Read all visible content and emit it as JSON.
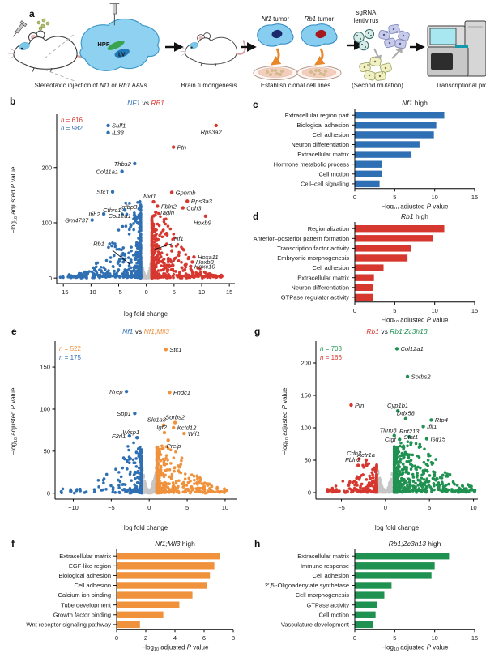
{
  "colors": {
    "blue": "#2f6fb3",
    "red": "#d6372e",
    "orange": "#f0913c",
    "green": "#1f9150",
    "gray": "#c6c6c6",
    "black": "#1a1a1a",
    "cell_body": "#87cdef",
    "nf1_nucleus": "#1b2a6b",
    "rb1_nucleus": "#a6191f",
    "brain": "#8ed1f0",
    "screen": "#a8e7f0"
  },
  "panel_letters": {
    "a": "a",
    "b": "b",
    "c": "c",
    "d": "d",
    "e": "e",
    "f": "f",
    "g": "g",
    "h": "h"
  },
  "panel_a": {
    "captions": [
      [
        {
          "t": "Stereotaxic injection of "
        },
        {
          "t": "Nf1",
          "i": 1
        },
        {
          "t": " or "
        },
        {
          "t": "Rb1",
          "i": 1
        },
        {
          "t": " AAVs"
        }
      ],
      [
        {
          "t": "Brain tumorigenesis"
        }
      ],
      [
        {
          "t": "Establish clonal cell lines"
        }
      ],
      [
        {
          "t": "(Second mutation)"
        }
      ],
      [
        {
          "t": "Transcriptional profiling"
        }
      ]
    ],
    "labels": {
      "nf1_tumor": [
        {
          "t": "Nf1",
          "i": 1
        },
        {
          "t": " tumor"
        }
      ],
      "rb1_tumor": [
        {
          "t": "Rb1",
          "i": 1
        },
        {
          "t": " tumor"
        }
      ],
      "sgrna_line1": "sgRNA",
      "sgrna_line2": "lentivirus",
      "hpf": "HPF",
      "lv": "LV"
    }
  },
  "chart_data": [
    {
      "id": "b",
      "type": "scatter",
      "subtype": "volcano",
      "title": [
        {
          "t": "NF1",
          "i": 1,
          "c": "blue"
        },
        {
          "t": " vs "
        },
        {
          "t": "RB1",
          "i": 1,
          "c": "red"
        }
      ],
      "legend": [
        [
          {
            "t": "n",
            "i": 1,
            "c": "red"
          },
          {
            "t": " = 616",
            "c": "red"
          }
        ],
        [
          {
            "t": "n",
            "i": 1,
            "c": "blue"
          },
          {
            "t": " = 982",
            "c": "blue"
          }
        ]
      ],
      "xlabel": "log fold change",
      "ylabel": "−log_{10} adjusted *P* value",
      "xlim": [
        -16.2,
        16
      ],
      "ylim": [
        -10,
        292
      ],
      "xticks": [
        -15,
        -10,
        -5,
        0,
        5,
        10,
        15
      ],
      "yticks": [
        0,
        100,
        200
      ],
      "genes": [
        {
          "n": "Sulf1",
          "x": -6.9,
          "y": 276,
          "c": "blue",
          "p": "r"
        },
        {
          "n": "IL33",
          "x": -6.9,
          "y": 263,
          "c": "blue",
          "p": "r"
        },
        {
          "n": "Rps3a2",
          "x": 12.6,
          "y": 276,
          "c": "red",
          "p": "bl"
        },
        {
          "n": "Ptn",
          "x": 4.9,
          "y": 237,
          "c": "red",
          "p": "r"
        },
        {
          "n": "Thbs2",
          "x": -2.1,
          "y": 207,
          "c": "blue",
          "p": "l"
        },
        {
          "n": "Col11a1",
          "x": -4.4,
          "y": 193,
          "c": "blue",
          "p": "l"
        },
        {
          "n": "Stc1",
          "x": -6.1,
          "y": 156,
          "c": "blue",
          "p": "l"
        },
        {
          "n": "Gpnmb",
          "x": 4.6,
          "y": 155,
          "c": "red",
          "p": "r"
        },
        {
          "n": "Nid1",
          "x": 1.3,
          "y": 138,
          "c": "red",
          "p": "al"
        },
        {
          "n": "Fbln2",
          "x": 2.0,
          "y": 130,
          "c": "red",
          "p": "r"
        },
        {
          "n": "Rps3a3",
          "x": 7.4,
          "y": 139,
          "c": "red",
          "p": "r"
        },
        {
          "n": "Cdh3",
          "x": 6.6,
          "y": 127,
          "c": "red",
          "p": "r"
        },
        {
          "n": "Igfbp3",
          "x": -1.0,
          "y": 129,
          "c": "blue",
          "p": "l"
        },
        {
          "n": "Cthrc1",
          "x": -3.9,
          "y": 123,
          "c": "blue",
          "p": "l"
        },
        {
          "n": "Itih2",
          "x": -7.7,
          "y": 116,
          "c": "blue",
          "p": "l"
        },
        {
          "n": "Col12a1",
          "x": -2.1,
          "y": 113,
          "c": "blue",
          "p": "l"
        },
        {
          "n": "Tagln",
          "x": 1.7,
          "y": 119,
          "c": "red",
          "p": "r"
        },
        {
          "n": "Gm4737",
          "x": -9.8,
          "y": 105,
          "c": "blue",
          "p": "l"
        },
        {
          "n": "Hoxb9",
          "x": 10.7,
          "y": 112,
          "c": "red",
          "p": "bl"
        },
        {
          "n": "Hoxa11",
          "x": 8.6,
          "y": 38,
          "c": "red",
          "p": "r"
        },
        {
          "n": "Hoxb8",
          "x": 8.3,
          "y": 29,
          "c": "red",
          "p": "r"
        },
        {
          "n": "Hoxc10",
          "x": 8.0,
          "y": 21,
          "c": "red",
          "p": "r"
        }
      ],
      "annotations": [
        {
          "n": "Rb1",
          "tx": -9.6,
          "ty": 58,
          "x1": -6.2,
          "y1": 51,
          "x2": -2.9,
          "y2": 24
        },
        {
          "n": "Nf1",
          "tx": 5.0,
          "ty": 68,
          "x1": 4.6,
          "y1": 62,
          "x2": 1.5,
          "y2": 52
        }
      ]
    },
    {
      "id": "c",
      "type": "bar",
      "color": "blue",
      "title": [
        {
          "t": "Nf1",
          "i": 1
        },
        {
          "t": " high"
        }
      ],
      "categories": [
        "Extracellular region part",
        "Biological adhesion",
        "Cell adhesion",
        "Neuron differentiation",
        "Extracellular matrix",
        "Hormone metabolic process",
        "Cell motion",
        "Cell–cell signaling"
      ],
      "values": [
        11.2,
        10.2,
        9.9,
        8.1,
        7.1,
        3.4,
        3.4,
        3.1
      ],
      "xlim": [
        0,
        15
      ],
      "xticks": [
        0,
        5,
        10,
        15
      ],
      "xlabel": "−log_{10} adjusted *P* value"
    },
    {
      "id": "d",
      "type": "bar",
      "color": "red",
      "title": [
        {
          "t": "Rb1",
          "i": 1
        },
        {
          "t": " high"
        }
      ],
      "categories": [
        "Regionalization",
        "Anterior–posterior pattern formation",
        "Transcription factor activity",
        "Embryonic morphogenesis",
        "Cell adhesion",
        "Extracellular matrix",
        "Neuron differentiation",
        "GTPase regulator activity"
      ],
      "values": [
        11.2,
        9.8,
        7.0,
        6.6,
        3.6,
        2.4,
        2.3,
        2.3
      ],
      "xlim": [
        0,
        15
      ],
      "xticks": [
        0,
        5,
        10,
        15
      ],
      "xlabel": "−log_{10} adjusted *P* value"
    },
    {
      "id": "e",
      "type": "scatter",
      "subtype": "volcano",
      "title": [
        {
          "t": "Nf1",
          "i": 1,
          "c": "blue"
        },
        {
          "t": " vs "
        },
        {
          "t": "Nf1;Mll3",
          "i": 1,
          "c": "orange"
        }
      ],
      "legend": [
        [
          {
            "t": "n",
            "i": 1,
            "c": "orange"
          },
          {
            "t": " = 522",
            "c": "orange"
          }
        ],
        [
          {
            "t": "n",
            "i": 1,
            "c": "blue"
          },
          {
            "t": " = 175",
            "c": "blue"
          }
        ]
      ],
      "xlabel": "log fold change",
      "ylabel": "−log_{10} adjusted *P* value",
      "xlim": [
        -12.4,
        11.5
      ],
      "ylim": [
        -7,
        178
      ],
      "xticks": [
        -10,
        -5,
        0,
        5,
        10
      ],
      "yticks": [
        0,
        50,
        100,
        150
      ],
      "genes": [
        {
          "n": "Stc1",
          "x": 2.2,
          "y": 171,
          "c": "orange",
          "p": "r"
        },
        {
          "n": "Nrep",
          "x": -3.0,
          "y": 121,
          "c": "blue",
          "p": "l"
        },
        {
          "n": "Fndc1",
          "x": 2.7,
          "y": 120,
          "c": "orange",
          "p": "r"
        },
        {
          "n": "Spp1",
          "x": -1.9,
          "y": 95,
          "c": "blue",
          "p": "l"
        },
        {
          "n": "Slc1a3",
          "x": 1.9,
          "y": 81,
          "c": "orange",
          "p": "al"
        },
        {
          "n": "Sorbs2",
          "x": 3.4,
          "y": 84,
          "c": "orange",
          "p": "a"
        },
        {
          "n": "Kctd12",
          "x": 3.2,
          "y": 78,
          "c": "orange",
          "p": "r"
        },
        {
          "n": "Igf2",
          "x": 2.0,
          "y": 72,
          "c": "orange",
          "p": "al"
        },
        {
          "n": "Wif1",
          "x": 4.6,
          "y": 71,
          "c": "orange",
          "p": "r"
        },
        {
          "n": "F2rl1",
          "x": -2.6,
          "y": 68,
          "c": "blue",
          "p": "l"
        },
        {
          "n": "Wisp1",
          "x": -1.6,
          "y": 66,
          "c": "blue",
          "p": "al"
        },
        {
          "n": "Prelp",
          "x": 2.5,
          "y": 63,
          "c": "orange",
          "p": "br"
        }
      ],
      "annotations": []
    },
    {
      "id": "f",
      "type": "bar",
      "color": "orange",
      "title": [
        {
          "t": "Nf1;Mll3",
          "i": 1
        },
        {
          "t": " high"
        }
      ],
      "categories": [
        "Extracellular matrix",
        "EGF-like region",
        "Biological adhesion",
        "Cell adhesion",
        "Calcium ion binding",
        "Tube development",
        "Growth factor binding",
        "Wnt receptor signaling pathway"
      ],
      "values": [
        7.1,
        6.7,
        6.4,
        6.2,
        5.2,
        4.3,
        3.2,
        1.6
      ],
      "xlim": [
        0,
        8
      ],
      "xticks": [
        0,
        2,
        4,
        6,
        8
      ],
      "xlabel": "−log_{10} adjusted *P* value"
    },
    {
      "id": "g",
      "type": "scatter",
      "subtype": "volcano",
      "title": [
        {
          "t": "Rb1",
          "i": 1,
          "c": "red"
        },
        {
          "t": " vs "
        },
        {
          "t": "Rb1;Zc3h13",
          "i": 1,
          "c": "green"
        }
      ],
      "legend": [
        [
          {
            "t": "n",
            "i": 1,
            "c": "green"
          },
          {
            "t": " = 703",
            "c": "green"
          }
        ],
        [
          {
            "t": "n",
            "i": 1,
            "c": "red"
          },
          {
            "t": " = 166",
            "c": "red"
          }
        ]
      ],
      "xlabel": "log fold change",
      "ylabel": "−log_{10} adjusted *P* value",
      "xlim": [
        -7.9,
        10.5
      ],
      "ylim": [
        -10,
        230
      ],
      "xticks": [
        -5,
        0,
        5,
        10
      ],
      "yticks": [
        0,
        50,
        100,
        150,
        200
      ],
      "genes": [
        {
          "n": "Col12a1",
          "x": 1.3,
          "y": 222,
          "c": "green",
          "p": "r"
        },
        {
          "n": "Sorbs2",
          "x": 2.5,
          "y": 179,
          "c": "green",
          "p": "r"
        },
        {
          "n": "Ptn",
          "x": -3.9,
          "y": 135,
          "c": "red",
          "p": "r"
        },
        {
          "n": "Cyp1b1",
          "x": 1.4,
          "y": 126,
          "c": "green",
          "p": "a"
        },
        {
          "n": "Ddx58",
          "x": 2.3,
          "y": 114,
          "c": "green",
          "p": "a"
        },
        {
          "n": "Rtp4",
          "x": 5.2,
          "y": 112,
          "c": "green",
          "p": "r"
        },
        {
          "n": "Ifit1",
          "x": 4.3,
          "y": 102,
          "c": "green",
          "p": "r"
        },
        {
          "n": "Timp3",
          "x": 1.0,
          "y": 88,
          "c": "green",
          "p": "al"
        },
        {
          "n": "Rnf213",
          "x": 2.7,
          "y": 86,
          "c": "green",
          "p": "a"
        },
        {
          "n": "Stat1",
          "x": 2.9,
          "y": 77,
          "c": "green",
          "p": "a"
        },
        {
          "n": "Isg15",
          "x": 4.7,
          "y": 83,
          "c": "green",
          "p": "r"
        },
        {
          "n": "Ctgf",
          "x": 1.6,
          "y": 82,
          "c": "green",
          "p": "l"
        },
        {
          "n": "Cdh3",
          "x": -3.0,
          "y": 52,
          "c": "red",
          "p": "al"
        },
        {
          "n": "Actr1a",
          "x": -2.2,
          "y": 50,
          "c": "red",
          "p": "a"
        },
        {
          "n": "Fbln2",
          "x": -3.1,
          "y": 42,
          "c": "red",
          "p": "al"
        }
      ],
      "annotations": []
    },
    {
      "id": "h",
      "type": "bar",
      "color": "green",
      "title": [
        {
          "t": "Rb1;Zc3h13",
          "i": 1
        },
        {
          "t": " high"
        }
      ],
      "categories": [
        "Extracellular matrix",
        "Immune response",
        "Cell adhesion",
        "2′,5′-Oligoadenylate synthetase",
        "Cell morphogenesis",
        "GTPase activity",
        "Cell motion",
        "Vasculature development"
      ],
      "values": [
        11.8,
        10.0,
        9.6,
        4.6,
        3.7,
        2.8,
        2.6,
        2.3
      ],
      "xlim": [
        0,
        15
      ],
      "xticks": [
        0,
        5,
        10,
        15
      ],
      "xlabel": "−log_{10} adjusted *P* value"
    }
  ]
}
